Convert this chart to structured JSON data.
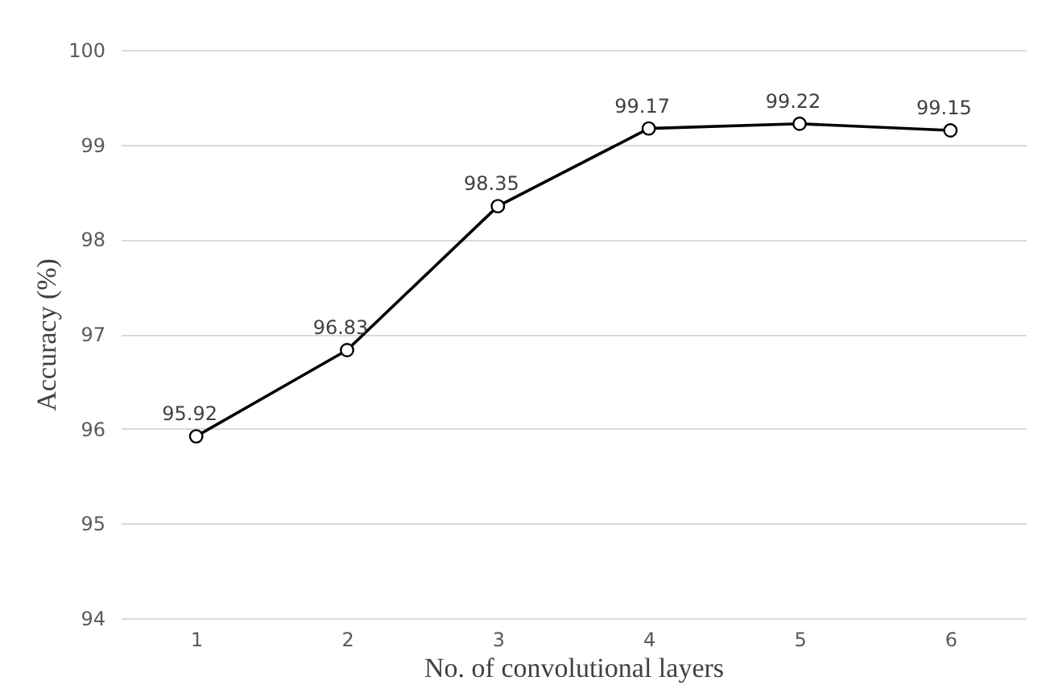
{
  "chart_data": {
    "type": "line",
    "xlabel": "No. of convolutional layers",
    "ylabel": "Accuracy (%)",
    "categories": [
      "1",
      "2",
      "3",
      "4",
      "5",
      "6"
    ],
    "series": [
      {
        "color": "#000000",
        "values": [
          95.92,
          96.83,
          98.35,
          99.17,
          99.22,
          99.15
        ]
      }
    ],
    "ylim": [
      94,
      100
    ],
    "yticks": [
      94,
      95,
      96,
      97,
      98,
      99,
      100
    ],
    "grid": "y",
    "marker": "circle",
    "line_style": "solid",
    "data_labels": true
  }
}
